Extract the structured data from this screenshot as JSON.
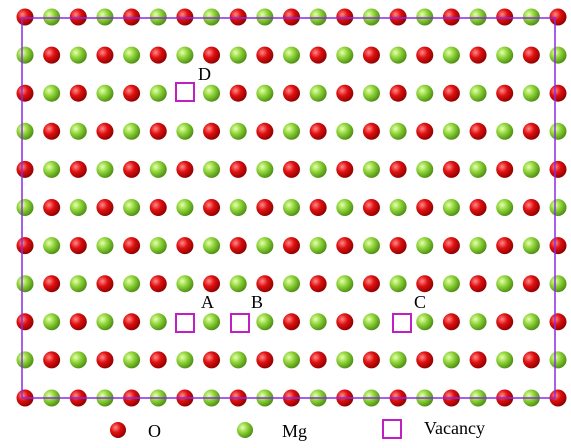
{
  "vacancies": [
    {
      "label": "D"
    },
    {
      "label": "A"
    },
    {
      "label": "B"
    },
    {
      "label": "C"
    }
  ],
  "legend": [
    {
      "label": "O"
    },
    {
      "label": "Mg"
    },
    {
      "label": "Vacancy"
    }
  ]
}
